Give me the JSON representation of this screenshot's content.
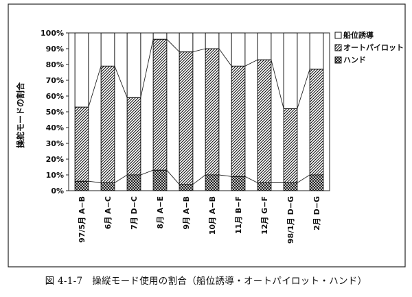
{
  "chart_data": {
    "type": "bar",
    "stacked": true,
    "ylabel": "操舵モードの割合",
    "ylim": [
      0,
      100
    ],
    "y_ticks": [
      "0%",
      "10%",
      "20%",
      "30%",
      "40%",
      "50%",
      "60%",
      "70%",
      "80%",
      "90%",
      "100%"
    ],
    "grid": false,
    "legend_position": "top-right",
    "categories": [
      "97/5月 A−B",
      "6月 A−C",
      "7月 D−C",
      "8月 A−E",
      "9月 A−B",
      "10月 A−B",
      "11月 B−F",
      "12月 G−F",
      "98/1月 D−G",
      "2月 D−G"
    ],
    "series": [
      {
        "name": "ハンド",
        "pattern": "crosshatch",
        "values": [
          6,
          5,
          10,
          13,
          4,
          10,
          9,
          5,
          5,
          10
        ]
      },
      {
        "name": "オートパイロット",
        "pattern": "diagonal",
        "values": [
          47,
          74,
          49,
          83,
          84,
          80,
          70,
          78,
          47,
          67
        ]
      },
      {
        "name": "船位誘導",
        "pattern": "white",
        "values": [
          47,
          21,
          41,
          4,
          12,
          10,
          21,
          17,
          48,
          23
        ]
      }
    ]
  },
  "caption": "図 4-1-7　操縦モード使用の割合（船位誘導・オートパイロット・ハンド）"
}
